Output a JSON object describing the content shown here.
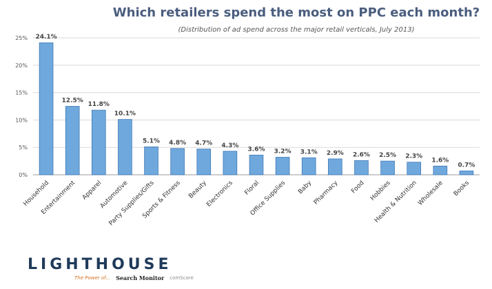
{
  "header": {
    "title": "Which retailers spend the most on PPC each month?",
    "subtitle": "(Distribution of ad spend across the major retail verticals, July 2013)"
  },
  "footer": {
    "brand": "LIGHTHOUSE",
    "powered_by": "The Power of...",
    "partner_1": "Search Monitor",
    "partner_2": "comScore"
  },
  "colors": {
    "bar_fill": "#6fa8dc",
    "bar_stroke": "#3d78b8",
    "title": "#4a5d7e",
    "grid": "#d9d9d9"
  },
  "chart_data": {
    "type": "bar",
    "title": "Which retailers spend the most on PPC each month?",
    "subtitle": "(Distribution of ad spend across the major retail verticals, July 2013)",
    "categories": [
      "Household",
      "Entertainment",
      "Apparel",
      "Automotive",
      "Party Supplies/Gifts",
      "Sports & Fitness",
      "Beauty",
      "Electronics",
      "Floral",
      "Office Supplies",
      "Baby",
      "Pharmacy",
      "Food",
      "Hobbies",
      "Health & Nutrition",
      "Wholesale",
      "Books"
    ],
    "values": [
      24.1,
      12.5,
      11.8,
      10.1,
      5.1,
      4.8,
      4.7,
      4.3,
      3.6,
      3.2,
      3.1,
      2.9,
      2.6,
      2.5,
      2.3,
      1.6,
      0.7
    ],
    "value_labels": [
      "24.1%",
      "12.5%",
      "11.8%",
      "10.1%",
      "5.1%",
      "4.8%",
      "4.7%",
      "4.3%",
      "3.6%",
      "3.2%",
      "3.1%",
      "2.9%",
      "2.6%",
      "2.5%",
      "2.3%",
      "1.6%",
      "0.7%"
    ],
    "yticks": [
      "0%",
      "5%",
      "10%",
      "15%",
      "20%",
      "25%"
    ],
    "ylim": [
      0,
      25
    ],
    "grid": true,
    "xlabel": "",
    "ylabel": ""
  }
}
